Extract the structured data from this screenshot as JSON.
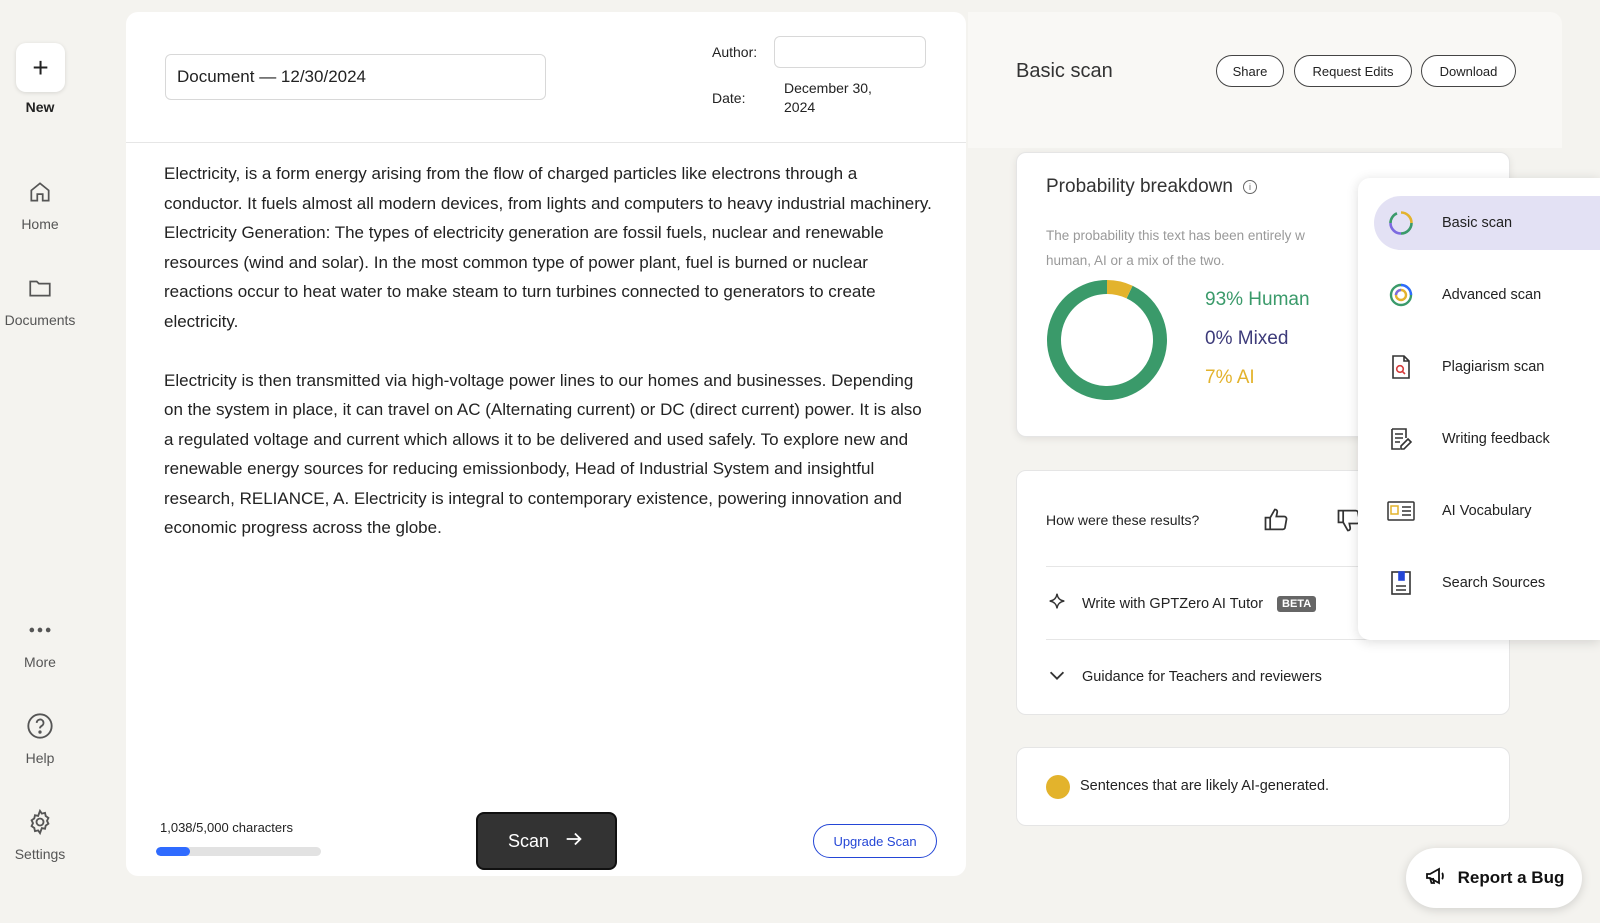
{
  "sidebar": {
    "new_label": "New",
    "items": [
      {
        "label": "Home",
        "icon": "home-icon"
      },
      {
        "label": "Documents",
        "icon": "folder-icon"
      },
      {
        "label": "More",
        "icon": "more-icon"
      },
      {
        "label": "Help",
        "icon": "help-icon"
      },
      {
        "label": "Settings",
        "icon": "gear-icon"
      }
    ]
  },
  "editor": {
    "title": "Document — 12/30/2024",
    "author_label": "Author:",
    "author_value": "",
    "date_label": "Date:",
    "date_value": "December 30, 2024",
    "paragraphs": [
      "Electricity, is a  form energy arising from the flow of charged particles like electrons through a conductor. It fuels almost all modern devices, from lights and computers to heavy industrial  machinery. Electricity Generation: The types of electricity generation are fossil  fuels, nuclear and renewable resources (wind and solar). In the most common type of power plant, fuel is burned or nuclear reactions  occur to heat water to make steam to turn turbines connected to generators to create electricity.",
      "Electricity is then  transmitted via high-voltage power lines to our homes and businesses. Depending on the  system in place, it can travel on AC (Alternating current) or DC (direct current) power. It is also a regulated voltage and current which  allows it to be delivered and used safely. To explore new and renewable energy sources for reducing emissionbody,  Head of Industrial System and insightful research, RELIANCE, A. Electricity is integral to contemporary existence,  powering innovation and economic progress across the globe."
    ],
    "char_count": "1,038/5,000 characters",
    "char_used": 1038,
    "char_max": 5000,
    "scan_label": "Scan",
    "upgrade_label": "Upgrade Scan"
  },
  "results": {
    "scan_title": "Basic scan",
    "share_label": "Share",
    "request_edits_label": "Request Edits",
    "download_label": "Download",
    "prob_title": "Probability breakdown",
    "prob_desc_1": "The probability this text has been entirely w",
    "prob_desc_2": "human, AI or a mix of the two.",
    "human_label": "93% Human",
    "mixed_label": "0% Mixed",
    "ai_label": "7% AI",
    "human_pct": 93,
    "mixed_pct": 0,
    "ai_pct": 7,
    "colors": {
      "human": "#3a9a6a",
      "mixed": "#3d3b7a",
      "ai": "#e3b32c"
    },
    "feedback_question": "How were these results?",
    "tutor_label": "Write with GPTZero AI Tutor",
    "beta_label": "BETA",
    "guidance_label": "Guidance for Teachers and reviewers",
    "legend_text": "Sentences that are likely AI-generated."
  },
  "dropdown": {
    "items": [
      {
        "label": "Basic scan",
        "icon": "basic-scan-icon",
        "active": true
      },
      {
        "label": "Advanced scan",
        "icon": "advanced-scan-icon"
      },
      {
        "label": "Plagiarism scan",
        "icon": "plagiarism-icon"
      },
      {
        "label": "Writing feedback",
        "icon": "writing-feedback-icon"
      },
      {
        "label": "AI Vocabulary",
        "icon": "ai-vocabulary-icon"
      },
      {
        "label": "Search Sources",
        "icon": "search-sources-icon"
      }
    ]
  },
  "bug_label": "Report a Bug"
}
